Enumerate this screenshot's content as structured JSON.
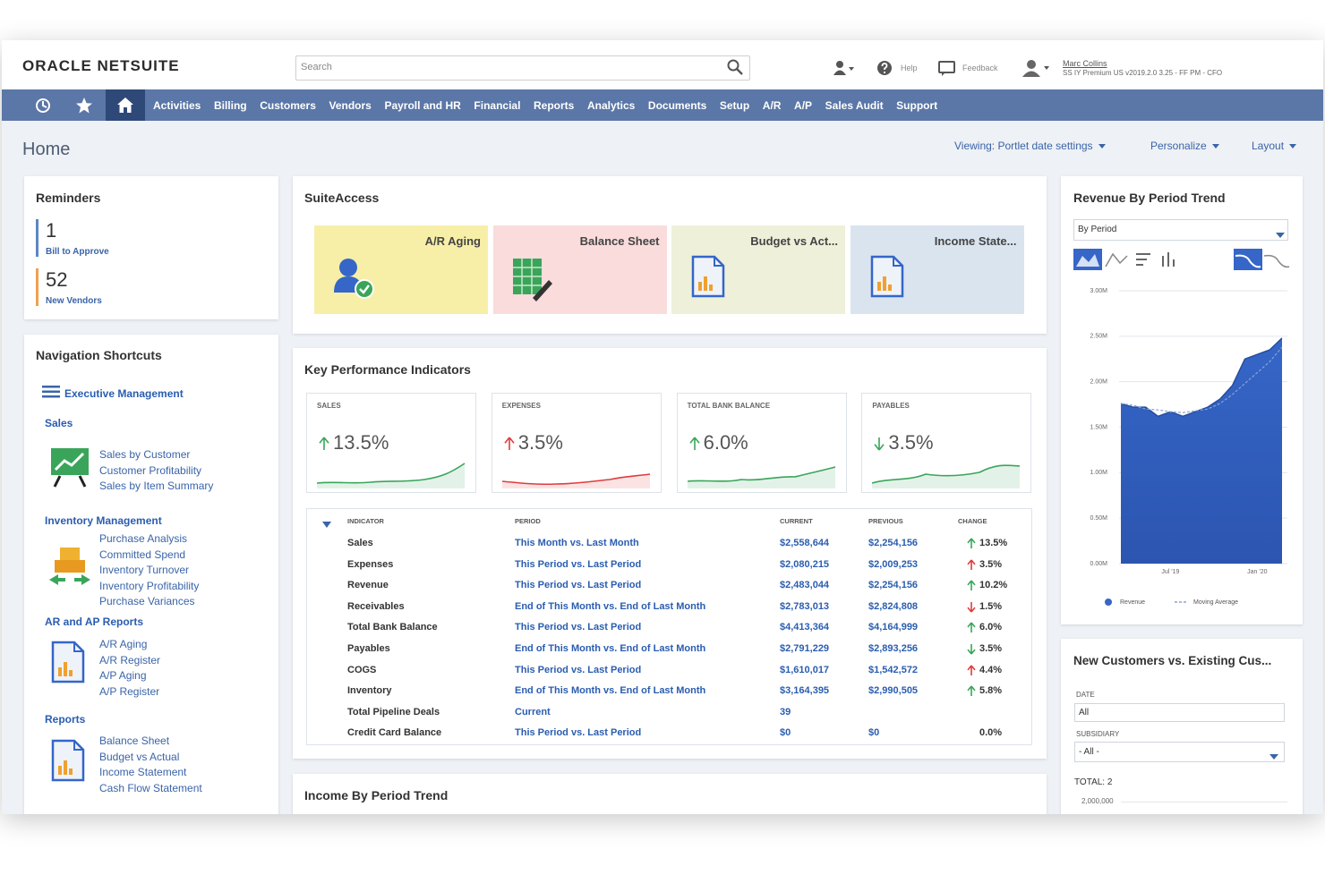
{
  "header": {
    "logo": "ORACLE NETSUITE",
    "search_placeholder": "Search",
    "help": "Help",
    "feedback": "Feedback",
    "user_name": "Marc Collins",
    "user_role": "SS IY Premium US v2019.2.0 3.25 - FF PM - CFO"
  },
  "nav": {
    "items": [
      "Activities",
      "Billing",
      "Customers",
      "Vendors",
      "Payroll and HR",
      "Financial",
      "Reports",
      "Analytics",
      "Documents",
      "Setup",
      "A/R",
      "A/P",
      "Sales Audit",
      "Support"
    ]
  },
  "page": {
    "title": "Home",
    "viewing": "Viewing: Portlet date settings",
    "personalize": "Personalize",
    "layout": "Layout"
  },
  "reminders": {
    "title": "Reminders",
    "items": [
      {
        "count": 1,
        "label": "Bill to Approve",
        "color": "#5b87c4"
      },
      {
        "count": 52,
        "label": "New Vendors",
        "color": "#f0a050"
      }
    ]
  },
  "shortcuts": {
    "title": "Navigation Shortcuts",
    "top": "Executive Management",
    "groups": [
      {
        "title": "Sales",
        "links": [
          "Sales by Customer",
          "Customer Profitability",
          "Sales by Item Summary"
        ]
      },
      {
        "title": "Inventory Management",
        "links": [
          "Purchase Analysis",
          "Committed Spend",
          "Inventory Turnover",
          "Inventory Profitability",
          "Purchase Variances"
        ]
      },
      {
        "title": "AR and AP Reports",
        "links": [
          "A/R Aging",
          "A/R Register",
          "A/P Aging",
          "A/P Register"
        ]
      },
      {
        "title": "Reports",
        "links": [
          "Balance Sheet",
          "Budget vs Actual",
          "Income Statement",
          "Cash Flow Statement"
        ]
      }
    ]
  },
  "suiteaccess": {
    "title": "SuiteAccess",
    "tiles": [
      {
        "label": "A/R Aging",
        "color": "#f7efa8"
      },
      {
        "label": "Balance Sheet",
        "color": "#fadcdc"
      },
      {
        "label": "Budget vs Act...",
        "color": "#eef0d9"
      },
      {
        "label": "Income State...",
        "color": "#d9e4ef"
      }
    ]
  },
  "kpi": {
    "title": "Key Performance Indicators",
    "cards": [
      {
        "label": "SALES",
        "value": "13.5%",
        "trend": "up",
        "color": "#3aa55a"
      },
      {
        "label": "EXPENSES",
        "value": "3.5%",
        "trend": "up",
        "color": "#e03c3c"
      },
      {
        "label": "TOTAL BANK BALANCE",
        "value": "6.0%",
        "trend": "up",
        "color": "#3aa55a"
      },
      {
        "label": "PAYABLES",
        "value": "3.5%",
        "trend": "down",
        "color": "#3aa55a"
      }
    ],
    "table": {
      "columns": [
        "INDICATOR",
        "PERIOD",
        "CURRENT",
        "PREVIOUS",
        "CHANGE"
      ],
      "rows": [
        {
          "cells": [
            "Sales",
            "This Month vs. Last Month",
            "$2,558,644",
            "$2,254,156",
            "13.5%"
          ],
          "trend": "up",
          "color": "#3aa55a"
        },
        {
          "cells": [
            "Expenses",
            "This Period vs. Last Period",
            "$2,080,215",
            "$2,009,253",
            "3.5%"
          ],
          "trend": "up",
          "color": "#e03c3c"
        },
        {
          "cells": [
            "Revenue",
            "This Period vs. Last Period",
            "$2,483,044",
            "$2,254,156",
            "10.2%"
          ],
          "trend": "up",
          "color": "#3aa55a"
        },
        {
          "cells": [
            "Receivables",
            "End of This Month vs. End of Last Month",
            "$2,783,013",
            "$2,824,808",
            "1.5%"
          ],
          "trend": "down",
          "color": "#e03c3c"
        },
        {
          "cells": [
            "Total Bank Balance",
            "This Period vs. Last Period",
            "$4,413,364",
            "$4,164,999",
            "6.0%"
          ],
          "trend": "up",
          "color": "#3aa55a"
        },
        {
          "cells": [
            "Payables",
            "End of This Month vs. End of Last Month",
            "$2,791,229",
            "$2,893,256",
            "3.5%"
          ],
          "trend": "down",
          "color": "#3aa55a"
        },
        {
          "cells": [
            "COGS",
            "This Period vs. Last Period",
            "$1,610,017",
            "$1,542,572",
            "4.4%"
          ],
          "trend": "up",
          "color": "#e03c3c"
        },
        {
          "cells": [
            "Inventory",
            "End of This Month vs. End of Last Month",
            "$3,164,395",
            "$2,990,505",
            "5.8%"
          ],
          "trend": "up",
          "color": "#3aa55a"
        },
        {
          "cells": [
            "Total Pipeline Deals",
            "Current",
            "39",
            null,
            null
          ],
          "trend": null,
          "color": null
        },
        {
          "cells": [
            "Credit Card Balance",
            "This Period vs. Last Period",
            "$0",
            "$0",
            "0.0%"
          ],
          "trend": null,
          "color": null
        }
      ]
    }
  },
  "income_trend": {
    "title": "Income By Period Trend"
  },
  "new_customers": {
    "title": "New Customers vs. Existing Cus...",
    "date_label": "DATE",
    "date_value": "All",
    "subsidiary_label": "SUBSIDIARY",
    "subsidiary_value": "- All -",
    "total": "TOTAL: 2",
    "axis_top": "2,000,000"
  },
  "chart_data": {
    "type": "area",
    "title": "Revenue By Period Trend",
    "selector": "By Period",
    "categories": [
      null,
      null,
      null,
      null,
      "Jul '19",
      null,
      null,
      null,
      null,
      null,
      null,
      "Jan '20",
      null,
      null
    ],
    "series": [
      {
        "name": "Revenue",
        "color": "#3566c8",
        "values": [
          1760000,
          1720000,
          1720000,
          1620000,
          1670000,
          1620000,
          1670000,
          1720000,
          1810000,
          1960000,
          2250000,
          2300000,
          2350000,
          2480000
        ]
      },
      {
        "name": "Moving Average",
        "color": "#8aa3cf",
        "values": [
          1760000,
          1740000,
          1700000,
          1690000,
          1670000,
          1660000,
          1680000,
          1700000,
          1760000,
          1860000,
          1980000,
          2100000,
          2220000,
          2380000
        ]
      }
    ],
    "ylim": [
      0,
      3000000
    ],
    "yticks": [
      {
        "value": 0,
        "label": "0.00M"
      },
      {
        "value": 500000,
        "label": "0.50M"
      },
      {
        "value": 1000000,
        "label": "1.00M"
      },
      {
        "value": 1500000,
        "label": "1.50M"
      },
      {
        "value": 2000000,
        "label": "2.00M"
      },
      {
        "value": 2500000,
        "label": "2.50M"
      },
      {
        "value": 3000000,
        "label": "3.00M"
      }
    ],
    "grid": true
  }
}
